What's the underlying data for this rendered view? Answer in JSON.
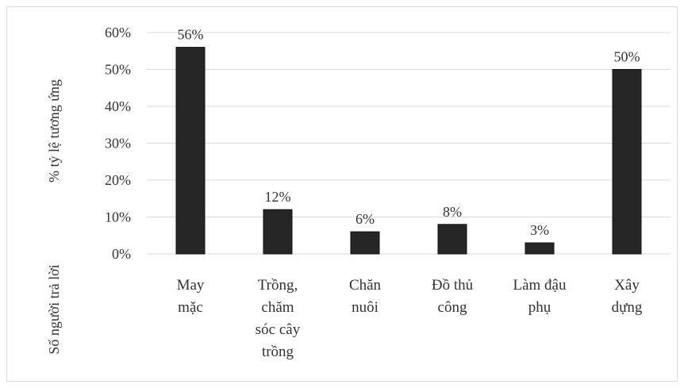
{
  "chart_data": {
    "type": "bar",
    "categories": [
      [
        "May",
        "mặc"
      ],
      [
        "Trồng,",
        "chăm",
        "sóc cây",
        "trồng"
      ],
      [
        "Chăn",
        "nuôi"
      ],
      [
        "Đồ thủ",
        "công"
      ],
      [
        "Làm đậu",
        "phụ"
      ],
      [
        "Xây",
        "dựng"
      ]
    ],
    "values": [
      56,
      12,
      6,
      8,
      3,
      50
    ],
    "data_labels": [
      "56%",
      "12%",
      "6%",
      "8%",
      "3%",
      "50%"
    ],
    "yticks": [
      0,
      10,
      20,
      30,
      40,
      50,
      60
    ],
    "ytick_labels": [
      "0%",
      "10%",
      "20%",
      "30%",
      "40%",
      "50%",
      "60%"
    ],
    "ylim": [
      0,
      60
    ],
    "ylabel_lines": [
      "% tỷ lệ tương ứng",
      "Số người trả lời"
    ],
    "grid": true,
    "bar_color": "#262626",
    "grid_color": "#d9d9d9"
  }
}
